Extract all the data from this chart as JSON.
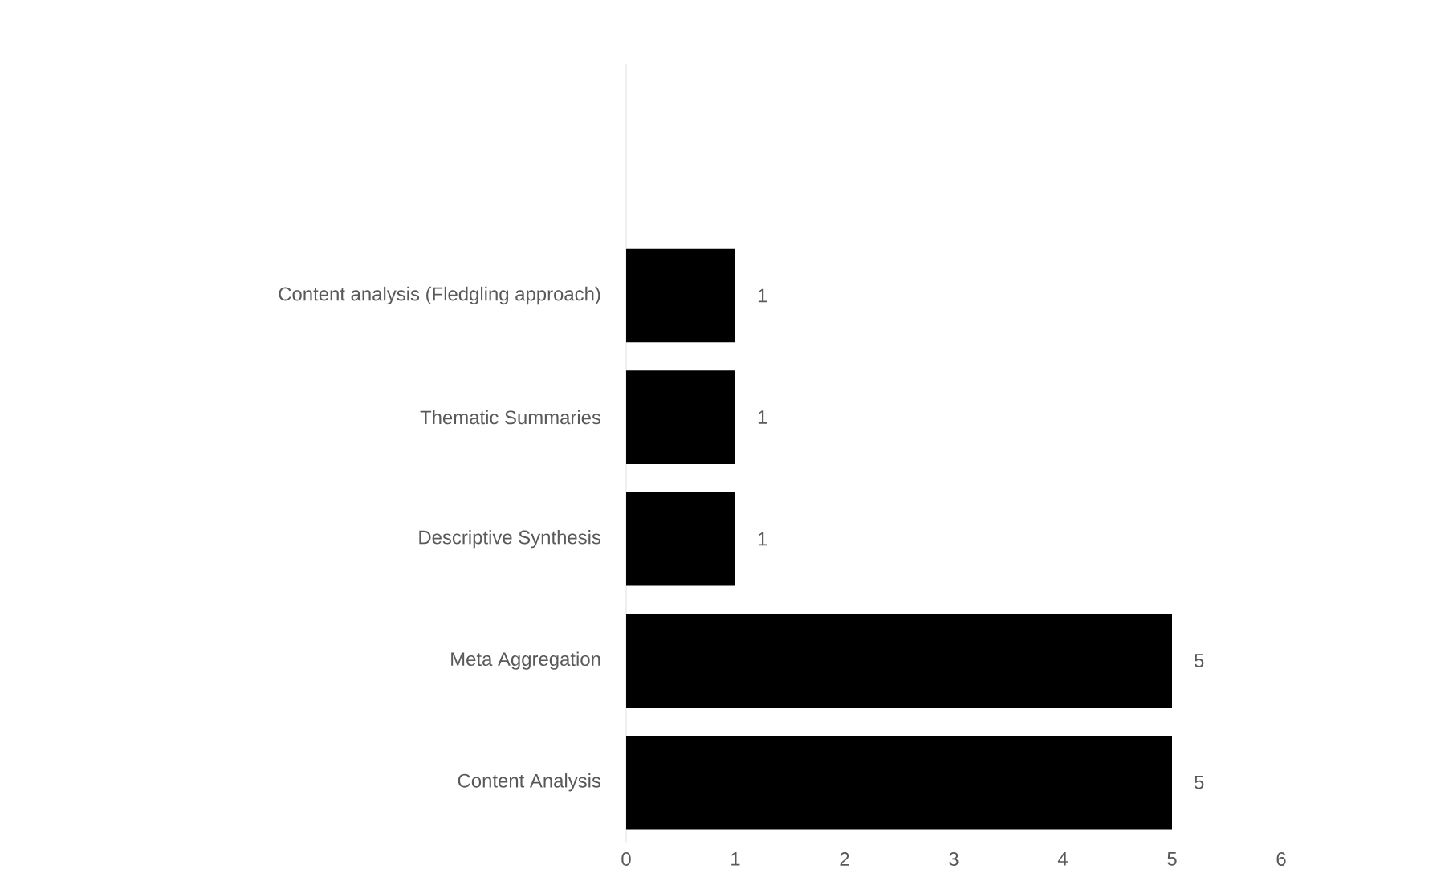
{
  "chart_data": {
    "type": "bar",
    "orientation": "horizontal",
    "categories": [
      "Content analysis (Fledgling approach)",
      "Thematic Summaries",
      "Descriptive Synthesis",
      "Meta Aggregation",
      "Content Analysis"
    ],
    "values": [
      1,
      1,
      1,
      5,
      5
    ],
    "color": "#000000",
    "xlim": [
      0,
      6
    ],
    "xticks": [
      0,
      1,
      2,
      3,
      4,
      5,
      6
    ],
    "data_labels": true,
    "grid": false
  }
}
